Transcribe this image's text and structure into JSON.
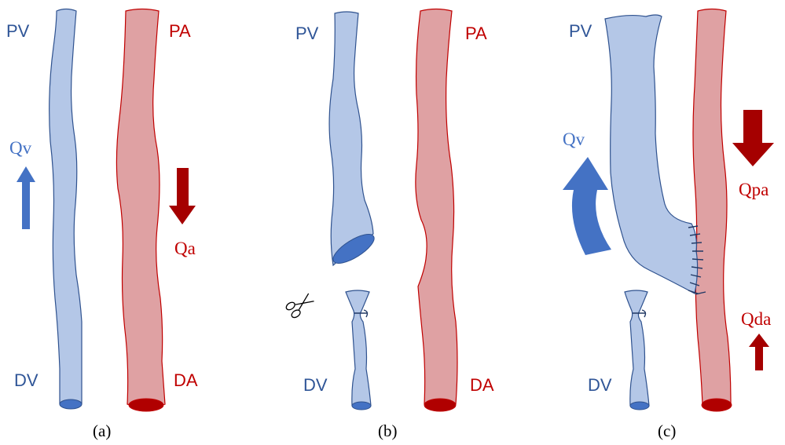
{
  "colors": {
    "vein_fill": "#b4c7e7",
    "vein_stroke": "#2f528f",
    "vein_cap": "#4472c4",
    "artery_fill": "#dfa1a3",
    "artery_stroke": "#c00000",
    "artery_cap": "#b00000",
    "vein_label": "#2f5597",
    "artery_label": "#c00000",
    "flow_blue": "#4472c4",
    "flow_red": "#a50000"
  },
  "panels": [
    {
      "caption": "(a)",
      "labels": {
        "pv": "PV",
        "pa": "PA",
        "dv": "DV",
        "da": "DA"
      },
      "flows": {
        "vein": "Qv",
        "artery": "Qa"
      }
    },
    {
      "caption": "(b)",
      "labels": {
        "pv": "PV",
        "pa": "PA",
        "dv": "DV",
        "da": "DA"
      },
      "icons": [
        "scissors-icon"
      ]
    },
    {
      "caption": "(c)",
      "labels": {
        "pv": "PV",
        "dv": "DV"
      },
      "flows": {
        "vein": "Qv",
        "proximal_artery": "Qpa",
        "distal_artery": "Qda"
      }
    }
  ]
}
